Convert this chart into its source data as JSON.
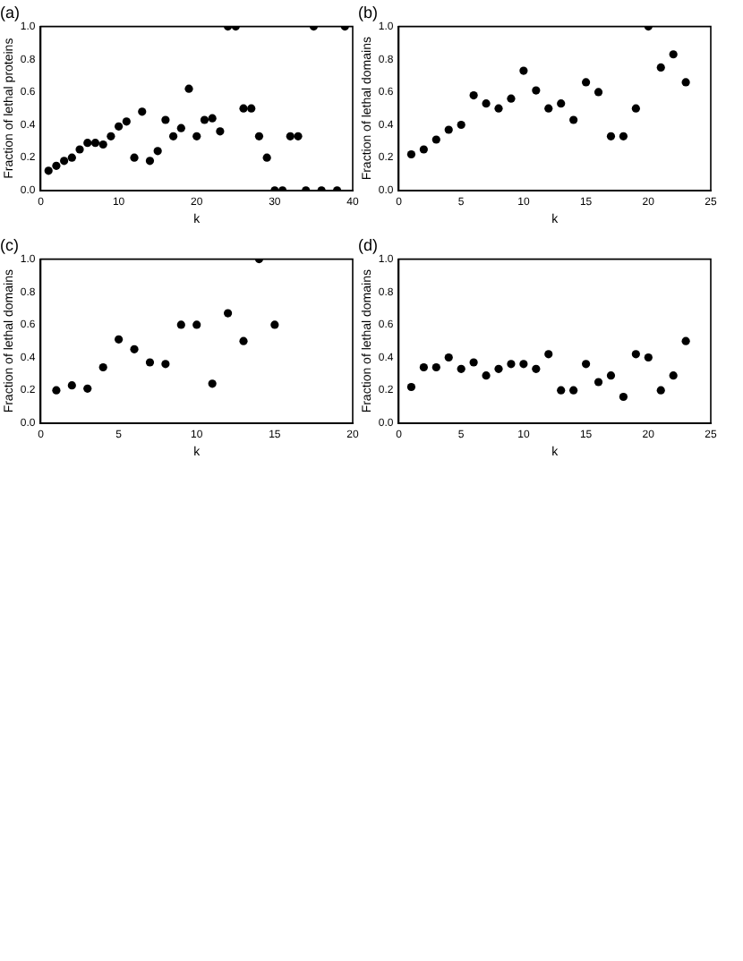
{
  "chart_data": [
    {
      "type": "scatter",
      "title": "(a)",
      "xlabel": "k",
      "ylabel": "Fraction of lethal proteins",
      "xlim": [
        0,
        40
      ],
      "xticks": [
        0,
        10,
        20,
        30,
        40
      ],
      "ylim": [
        0,
        1
      ],
      "yticks": [
        {
          "value": 0,
          "label": "0.0"
        },
        {
          "value": 0.2,
          "label": "0.2"
        },
        {
          "value": 0.4,
          "label": "0.4"
        },
        {
          "value": 0.6,
          "label": "0.6"
        },
        {
          "value": 0.8,
          "label": "0.8"
        },
        {
          "value": 1,
          "label": "1.0"
        }
      ],
      "grid": false,
      "legend": false,
      "marker": "circle",
      "series": [
        {
          "color": "#000000",
          "x": [
            1,
            2,
            3,
            4,
            5,
            6,
            7,
            8,
            9,
            10,
            11,
            12,
            13,
            14,
            15,
            16,
            17,
            18,
            19,
            20,
            21,
            22,
            23,
            24,
            25,
            26,
            27,
            28,
            29,
            30,
            31,
            32,
            33,
            34,
            35,
            36,
            38,
            39
          ],
          "values": [
            0.12,
            0.15,
            0.18,
            0.2,
            0.25,
            0.29,
            0.29,
            0.28,
            0.33,
            0.39,
            0.42,
            0.2,
            0.48,
            0.18,
            0.24,
            0.43,
            0.33,
            0.38,
            0.62,
            0.33,
            0.43,
            0.44,
            0.36,
            1.0,
            1.0,
            0.5,
            0.5,
            0.33,
            0.2,
            0,
            0,
            0.33,
            0.33,
            0,
            1.0,
            0,
            0,
            1.0
          ]
        }
      ]
    },
    {
      "type": "scatter",
      "title": "(b)",
      "xlabel": "k",
      "ylabel": "Fraction of lethal domains",
      "xlim": [
        0,
        25
      ],
      "xticks": [
        0,
        5,
        10,
        15,
        20,
        25
      ],
      "ylim": [
        0,
        1
      ],
      "yticks": [
        {
          "value": 0,
          "label": "0.0"
        },
        {
          "value": 0.2,
          "label": "0.2"
        },
        {
          "value": 0.4,
          "label": "0.4"
        },
        {
          "value": 0.6,
          "label": "0.6"
        },
        {
          "value": 0.8,
          "label": "0.8"
        },
        {
          "value": 1,
          "label": "1.0"
        }
      ],
      "grid": false,
      "legend": false,
      "marker": "circle",
      "series": [
        {
          "color": "#000000",
          "x": [
            1,
            2,
            3,
            4,
            5,
            6,
            7,
            8,
            9,
            10,
            11,
            12,
            13,
            14,
            15,
            16,
            17,
            18,
            19,
            20,
            21,
            22,
            23
          ],
          "values": [
            0.22,
            0.25,
            0.31,
            0.37,
            0.4,
            0.58,
            0.53,
            0.5,
            0.56,
            0.73,
            0.61,
            0.5,
            0.53,
            0.43,
            0.66,
            0.6,
            0.33,
            0.33,
            0.5,
            1.0,
            0.75,
            0.83,
            0.66
          ]
        }
      ]
    },
    {
      "type": "scatter",
      "title": "(c)",
      "xlabel": "k",
      "ylabel": "Fraction of lethal domains",
      "xlim": [
        0,
        20
      ],
      "xticks": [
        0,
        5,
        10,
        15,
        20
      ],
      "ylim": [
        0,
        1
      ],
      "yticks": [
        {
          "value": 0,
          "label": "0.0"
        },
        {
          "value": 0.2,
          "label": "0.2"
        },
        {
          "value": 0.4,
          "label": "0.4"
        },
        {
          "value": 0.6,
          "label": "0.6"
        },
        {
          "value": 0.8,
          "label": "0.8"
        },
        {
          "value": 1,
          "label": "1.0"
        }
      ],
      "grid": false,
      "legend": false,
      "marker": "circle",
      "series": [
        {
          "color": "#000000",
          "x": [
            1,
            2,
            3,
            4,
            5,
            6,
            7,
            8,
            9,
            10,
            11,
            12,
            13,
            14,
            15
          ],
          "values": [
            0.2,
            0.23,
            0.21,
            0.34,
            0.51,
            0.45,
            0.37,
            0.36,
            0.6,
            0.6,
            0.24,
            0.67,
            0.5,
            1.0,
            0.6
          ]
        }
      ]
    },
    {
      "type": "scatter",
      "title": "(d)",
      "xlabel": "k",
      "ylabel": "Fraction of lethal domains",
      "xlim": [
        0,
        25
      ],
      "xticks": [
        0,
        5,
        10,
        15,
        20,
        25
      ],
      "ylim": [
        0,
        1
      ],
      "yticks": [
        {
          "value": 0,
          "label": "0.0"
        },
        {
          "value": 0.2,
          "label": "0.2"
        },
        {
          "value": 0.4,
          "label": "0.4"
        },
        {
          "value": 0.6,
          "label": "0.6"
        },
        {
          "value": 0.8,
          "label": "0.8"
        },
        {
          "value": 1,
          "label": "1.0"
        }
      ],
      "grid": false,
      "legend": false,
      "marker": "circle",
      "series": [
        {
          "color": "#000000",
          "x": [
            1,
            2,
            3,
            4,
            5,
            6,
            7,
            8,
            9,
            10,
            11,
            12,
            13,
            14,
            15,
            16,
            17,
            18,
            19,
            20,
            21,
            22,
            23
          ],
          "values": [
            0.22,
            0.34,
            0.34,
            0.4,
            0.33,
            0.37,
            0.29,
            0.33,
            0.36,
            0.36,
            0.33,
            0.42,
            0.2,
            0.2,
            0.36,
            0.25,
            0.29,
            0.16,
            0.42,
            0.4,
            0.2,
            0.29,
            0.5
          ]
        }
      ]
    }
  ]
}
